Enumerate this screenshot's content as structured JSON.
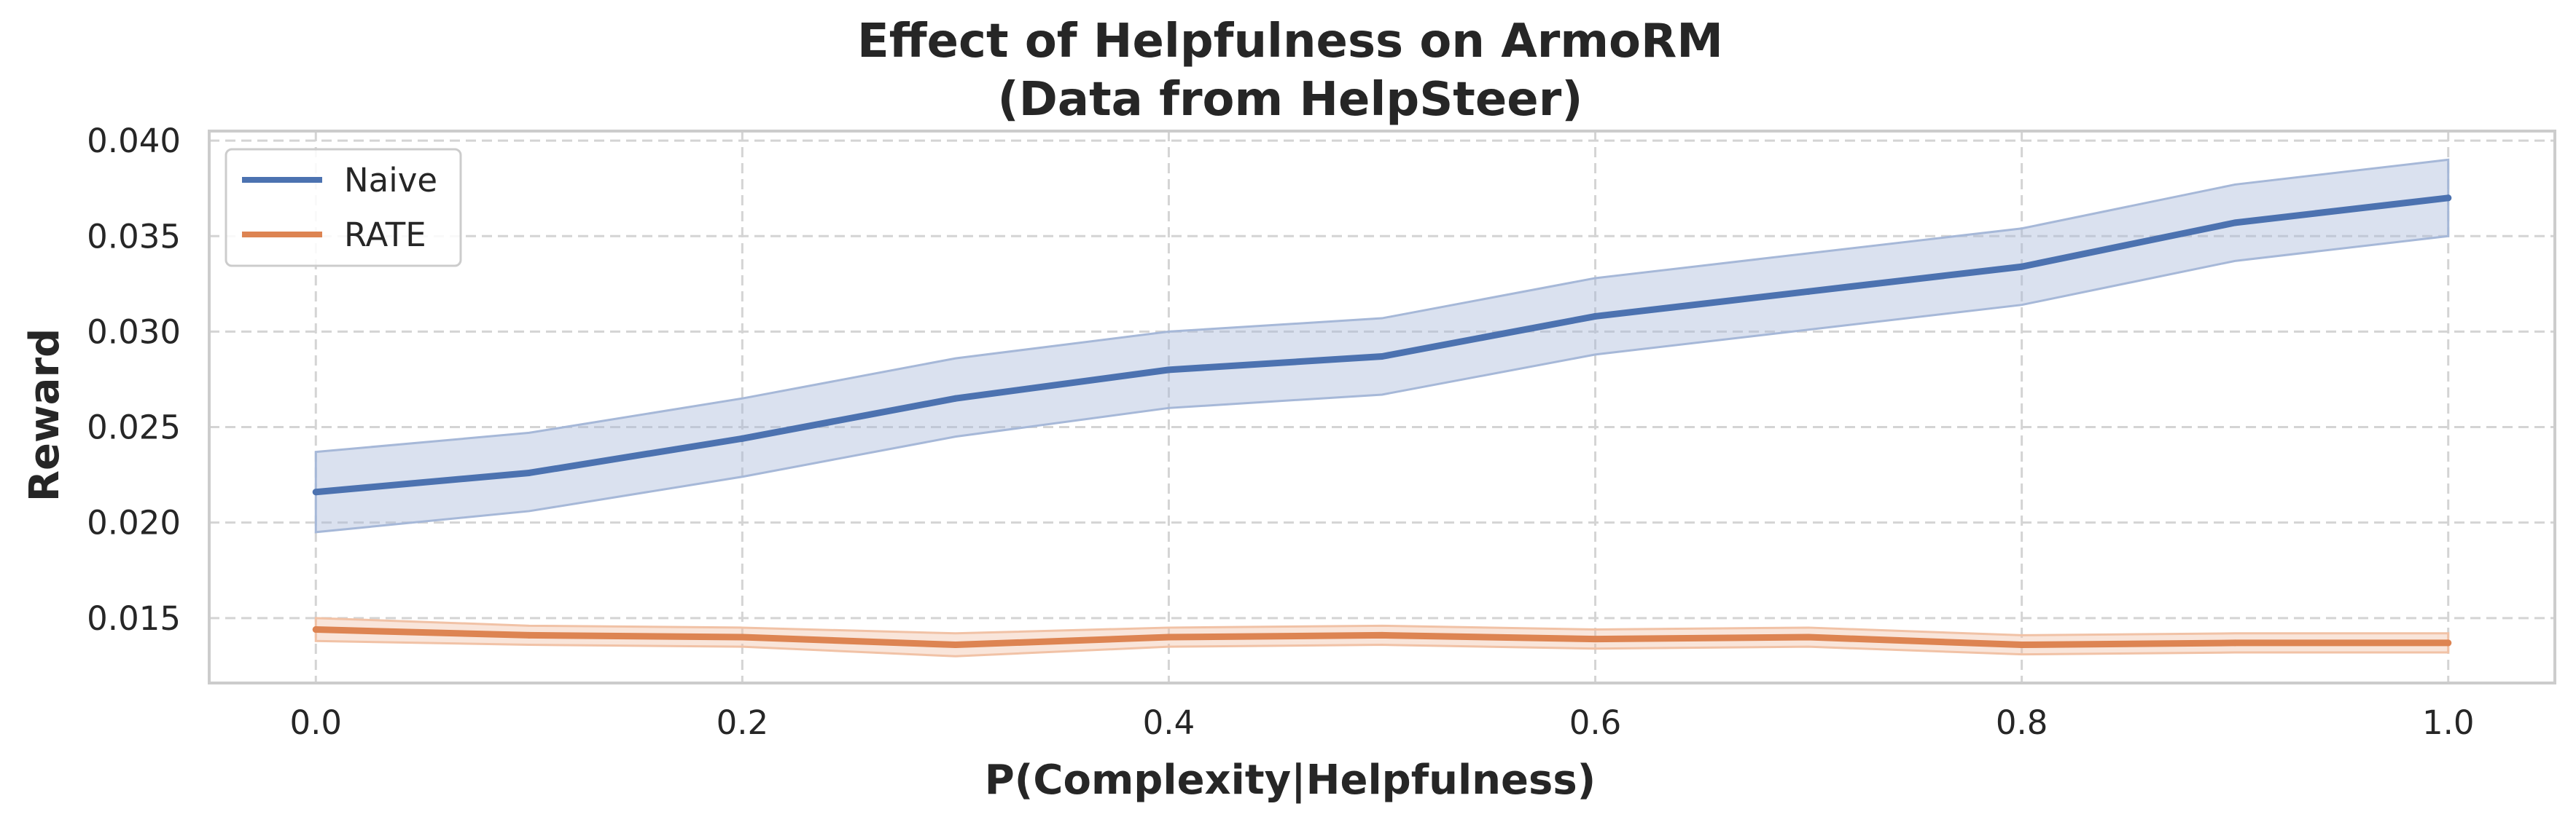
{
  "chart_data": {
    "type": "line",
    "title": [
      "Effect of Helpfulness on ArmoRM",
      "(Data from HelpSteer)"
    ],
    "xlabel": "P(Complexity|Helpfulness)",
    "ylabel": "Reward",
    "xlim": [
      -0.05,
      1.05
    ],
    "ylim": [
      0.0116,
      0.0405
    ],
    "xticks": [
      0.0,
      0.2,
      0.4,
      0.6,
      0.8,
      1.0
    ],
    "xtick_labels": [
      "0.0",
      "0.2",
      "0.4",
      "0.6",
      "0.8",
      "1.0"
    ],
    "yticks": [
      0.015,
      0.02,
      0.025,
      0.03,
      0.035,
      0.04
    ],
    "ytick_labels": [
      "0.015",
      "0.020",
      "0.025",
      "0.030",
      "0.035",
      "0.040"
    ],
    "grid": true,
    "legend_position": "top-left",
    "x": [
      0.0,
      0.1,
      0.2,
      0.3,
      0.4,
      0.5,
      0.6,
      0.7,
      0.8,
      0.9,
      1.0
    ],
    "series": [
      {
        "name": "Naive",
        "color": "#4c72b0",
        "band_color": "#a6b8d8",
        "values": [
          0.0216,
          0.0226,
          0.0244,
          0.0265,
          0.028,
          0.0287,
          0.0308,
          0.0321,
          0.0334,
          0.0357,
          0.037
        ],
        "lower": [
          0.0195,
          0.0206,
          0.0224,
          0.0245,
          0.026,
          0.0267,
          0.0288,
          0.0301,
          0.0314,
          0.0337,
          0.035
        ],
        "upper": [
          0.0237,
          0.0247,
          0.0265,
          0.0286,
          0.03,
          0.0307,
          0.0328,
          0.0341,
          0.0354,
          0.0377,
          0.039
        ]
      },
      {
        "name": "RATE",
        "color": "#dd8452",
        "band_color": "#f1c2a6",
        "values": [
          0.0144,
          0.0141,
          0.014,
          0.0136,
          0.014,
          0.0141,
          0.0139,
          0.014,
          0.0136,
          0.0137,
          0.0137
        ],
        "lower": [
          0.0138,
          0.0136,
          0.0135,
          0.013,
          0.0135,
          0.0136,
          0.0134,
          0.0135,
          0.0131,
          0.0132,
          0.0132
        ],
        "upper": [
          0.015,
          0.0146,
          0.0145,
          0.0142,
          0.0145,
          0.0146,
          0.0144,
          0.0145,
          0.0141,
          0.0142,
          0.0142
        ]
      }
    ]
  }
}
